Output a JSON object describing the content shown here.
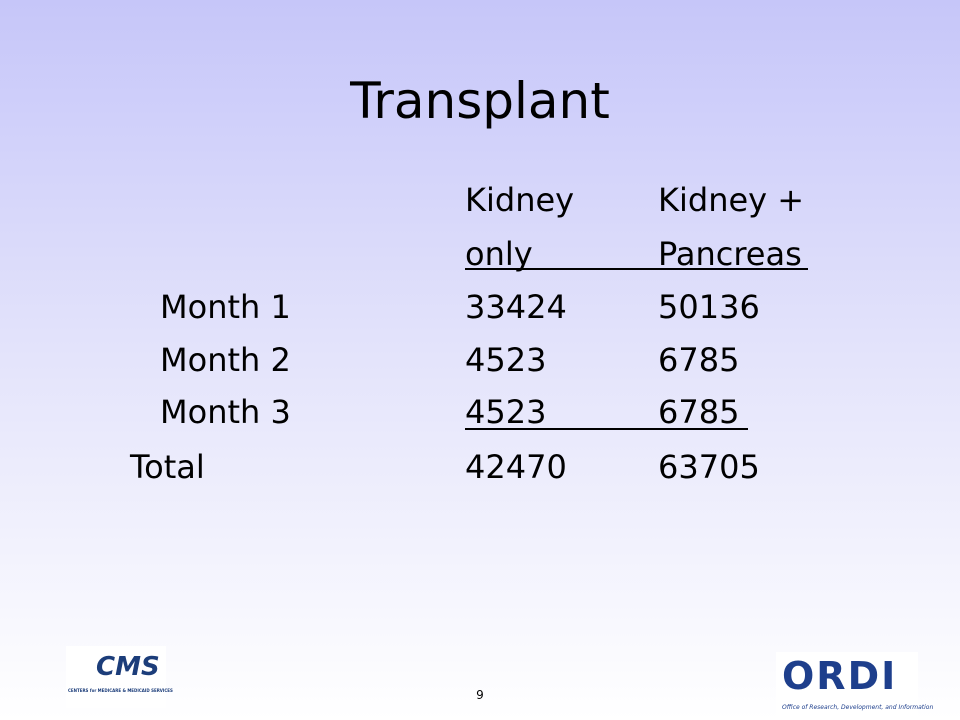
{
  "header": {
    "title": "Transplant"
  },
  "table": {
    "header_rows": [
      [
        "Kidney",
        "Kidney +"
      ],
      [
        "only",
        "Pancreas"
      ]
    ],
    "rows": [
      {
        "label": "Month 1",
        "values": [
          33424,
          50136
        ]
      },
      {
        "label": "Month 2",
        "values": [
          4523,
          6785
        ]
      },
      {
        "label": "Month 3",
        "values": [
          4523,
          6785
        ]
      },
      {
        "label": "Total",
        "values": [
          42470,
          63705
        ]
      }
    ]
  },
  "footer": {
    "page": "9",
    "left_logo": {
      "mark": "CMS",
      "caption": "CENTERS for MEDICARE & MEDICAID SERVICES"
    },
    "right_logo": {
      "mark": "ORDI",
      "caption": "Office of Research, Development, and Information"
    }
  }
}
